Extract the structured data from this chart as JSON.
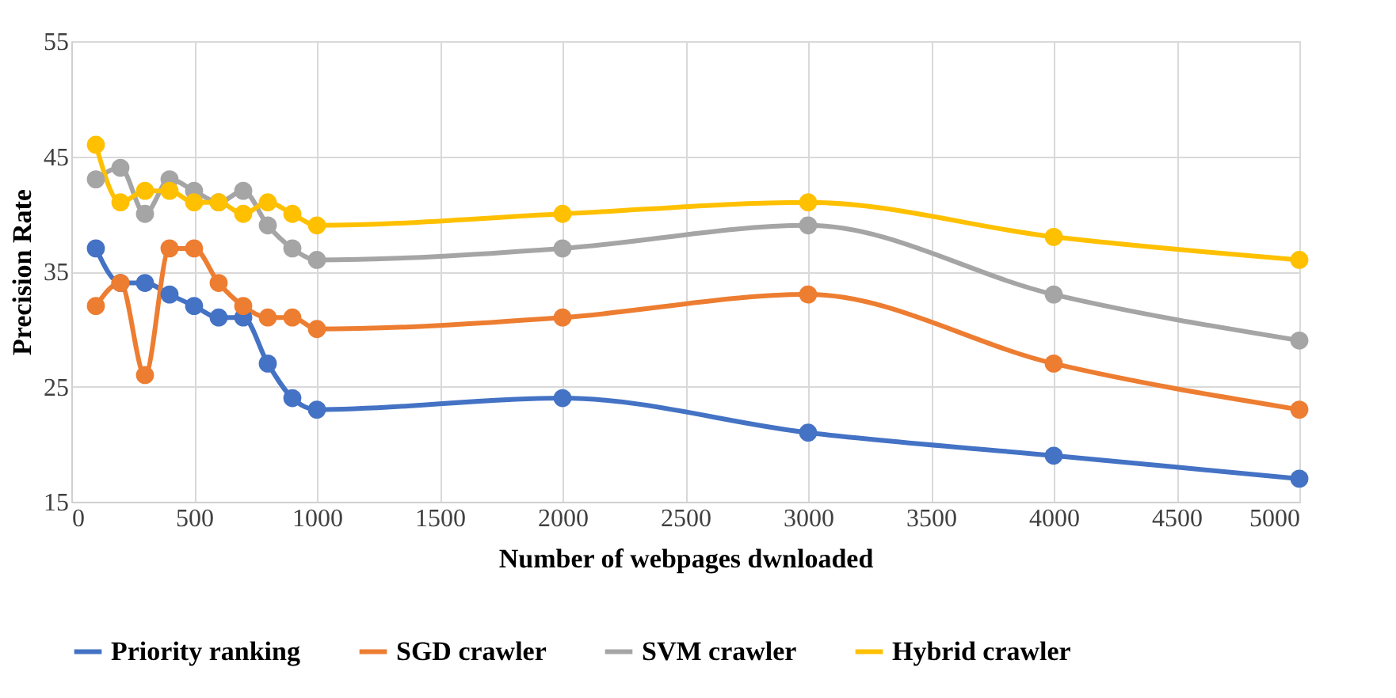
{
  "chart_data": {
    "type": "line",
    "xlabel": "Number of webpages dwnloaded",
    "ylabel": "Precision Rate",
    "x": [
      100,
      200,
      300,
      400,
      500,
      600,
      700,
      800,
      900,
      1000,
      2000,
      3000,
      4000,
      5000
    ],
    "series": [
      {
        "name": "Priority ranking",
        "color": "#4472c4",
        "values": [
          37,
          34,
          34,
          33,
          32,
          31,
          31,
          27,
          24,
          23,
          24,
          21,
          19,
          17
        ]
      },
      {
        "name": "SGD crawler",
        "color": "#ed7d31",
        "values": [
          32,
          34,
          26,
          37,
          37,
          34,
          32,
          31,
          31,
          30,
          31,
          33,
          27,
          23
        ]
      },
      {
        "name": "SVM crawler",
        "color": "#a5a5a5",
        "values": [
          43,
          44,
          40,
          43,
          42,
          41,
          42,
          39,
          37,
          36,
          37,
          39,
          33,
          29
        ]
      },
      {
        "name": "Hybrid crawler",
        "color": "#ffc000",
        "values": [
          46,
          41,
          42,
          42,
          41,
          41,
          40,
          41,
          40,
          39,
          40,
          41,
          38,
          36
        ]
      }
    ],
    "xlim": [
      0,
      5000
    ],
    "xticks": [
      0,
      500,
      1000,
      1500,
      2000,
      2500,
      3000,
      3500,
      4000,
      4500,
      5000
    ],
    "ylim": [
      15,
      55
    ],
    "yticks": [
      15,
      25,
      35,
      45,
      55
    ],
    "grid": true,
    "legend": "bottom",
    "marker": "circle",
    "line_style": "solid"
  }
}
